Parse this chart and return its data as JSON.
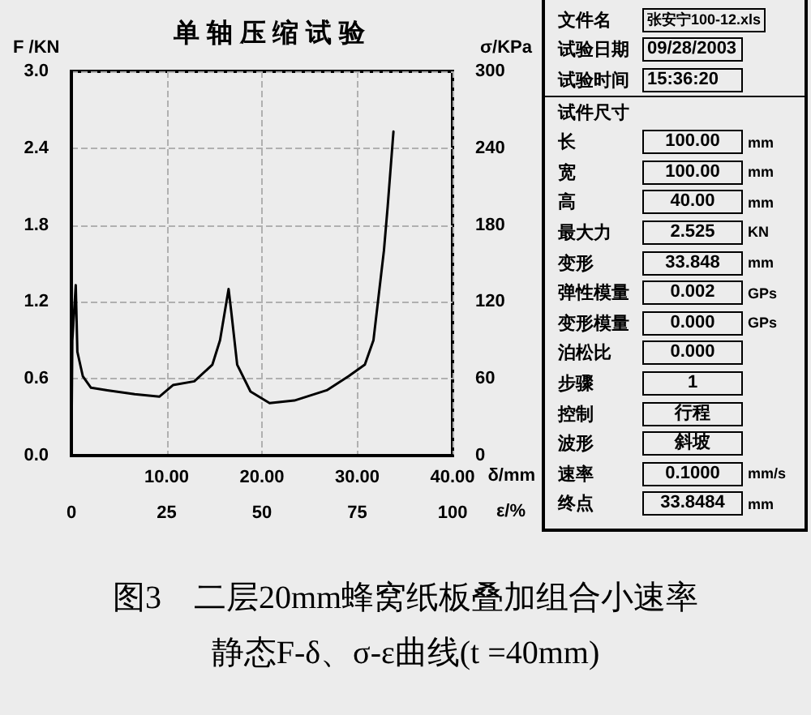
{
  "chart_data": [
    {
      "type": "line",
      "title": "单 轴 压 缩 试 验",
      "xlabel": "δ/mm",
      "ylabel": "F /KN",
      "y2label": "σ/KPa",
      "x2label": "ε/%",
      "x": [
        0,
        0.1,
        0.46,
        0.63,
        1.2,
        2.06,
        3.78,
        6.65,
        9.23,
        10.66,
        12.9,
        14.8,
        15.6,
        16.5,
        16.8,
        17.4,
        18.8,
        20.8,
        23.4,
        26.8,
        29.1,
        30.8,
        31.7,
        32.5,
        32.8,
        33.2,
        33.8
      ],
      "series": [
        {
          "color": "#000000",
          "values": [
            0,
            0.9,
            1.33,
            0.81,
            0.62,
            0.53,
            0.51,
            0.48,
            0.46,
            0.55,
            0.58,
            0.71,
            0.9,
            1.3,
            1.11,
            0.71,
            0.5,
            0.41,
            0.43,
            0.51,
            0.62,
            0.71,
            0.9,
            1.41,
            1.6,
            1.95,
            2.53
          ]
        }
      ],
      "xlim": [
        0,
        40
      ],
      "xticks": [
        {
          "value": 10,
          "label": "10.00"
        },
        {
          "value": 20,
          "label": "20.00"
        },
        {
          "value": 30,
          "label": "30.00"
        },
        {
          "value": 40,
          "label": "40.00"
        }
      ],
      "ylim": [
        0,
        3
      ],
      "yticks": [
        {
          "value": 0,
          "label": "0.0"
        },
        0.6,
        1.2,
        1.8,
        2.4,
        {
          "value": 3,
          "label": "3.0"
        }
      ],
      "y2lim": [
        0,
        300
      ],
      "y2ticks": [
        0,
        60,
        120,
        180,
        240,
        300
      ],
      "x2lim": [
        0,
        100
      ],
      "x2ticks": [
        0,
        25,
        50,
        75,
        100
      ],
      "grid": true,
      "marker": "none",
      "line_style": "solid",
      "annotations": [
        "图3　二层20mm蜂窝纸板叠加组合小速率",
        "静态F-δ、σ-ε曲线(t =40mm)"
      ]
    },
    {
      "type": "other",
      "categories": [
        "文件名",
        "试验日期",
        "试验时间",
        "试件尺寸",
        "长",
        "宽",
        "高",
        "最大力",
        "变形",
        "弹性模量",
        "变形模量",
        "泊松比",
        "步骤",
        "控制",
        "波形",
        "速率",
        "终点"
      ],
      "value_labels": [
        "张安宁100-12.xls",
        "09/28/2003",
        "15:36:20",
        null,
        "100.00",
        "100.00",
        "40.00",
        "2.525",
        "33.848",
        "0.002",
        "0.000",
        "0.000",
        "1",
        "行程",
        "斜坡",
        "0.1000",
        "33.8484"
      ],
      "y2_categories": [
        null,
        null,
        null,
        null,
        "mm",
        "mm",
        "mm",
        "KN",
        "mm",
        "GPs",
        "GPs",
        null,
        null,
        null,
        null,
        "mm/s",
        "mm"
      ]
    }
  ]
}
